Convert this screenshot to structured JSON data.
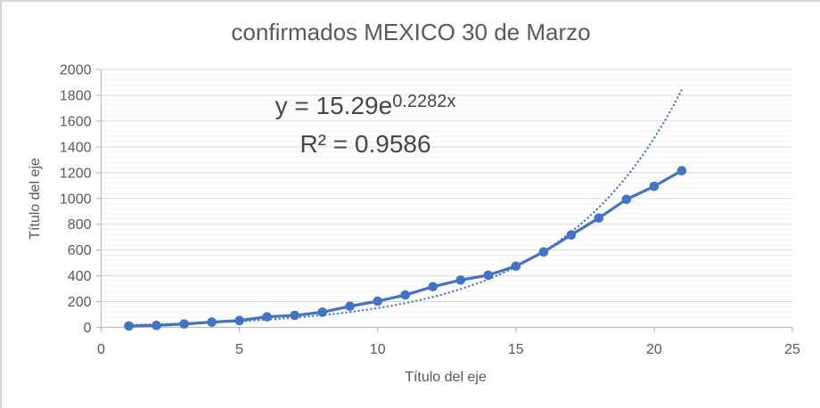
{
  "chart_data": {
    "type": "line",
    "title": "confirmados MEXICO 30 de Marzo",
    "xlabel": "Título del eje",
    "ylabel": "Título del eje",
    "x": [
      1,
      2,
      3,
      4,
      5,
      6,
      7,
      8,
      9,
      10,
      11,
      12,
      13,
      14,
      15,
      16,
      17,
      18,
      19,
      20,
      21
    ],
    "y": [
      11,
      15,
      26,
      41,
      53,
      82,
      93,
      118,
      164,
      203,
      251,
      316,
      367,
      405,
      475,
      585,
      717,
      848,
      993,
      1094,
      1215
    ],
    "xlim": [
      0,
      25
    ],
    "ylim": [
      0,
      2000
    ],
    "x_ticks": [
      0,
      5,
      10,
      15,
      20,
      25
    ],
    "y_ticks": [
      0,
      200,
      400,
      600,
      800,
      1000,
      1200,
      1400,
      1600,
      1800,
      2000
    ],
    "y_minor_unit": 40,
    "grid": {
      "major_horizontal": true,
      "minor_horizontal": true,
      "vertical": false
    },
    "legend": "none",
    "marker": "circle",
    "colors": {
      "series": "#4472C4",
      "major_grid": "#d9d9d9",
      "minor_grid": "#f2f2f2",
      "axis": "#bfbfbf",
      "text": "#595959",
      "equation_text": "#474747"
    },
    "trendline": {
      "type": "exponential",
      "coef_a": 15.29,
      "coef_b": 0.2282,
      "r_squared": 0.9586,
      "style": "dotted",
      "x_start": 1,
      "x_end": 21,
      "equation_prefix": "y = 15.29e",
      "equation_exponent": "0.2282x",
      "r2_text": "R² = 0.9586"
    }
  }
}
